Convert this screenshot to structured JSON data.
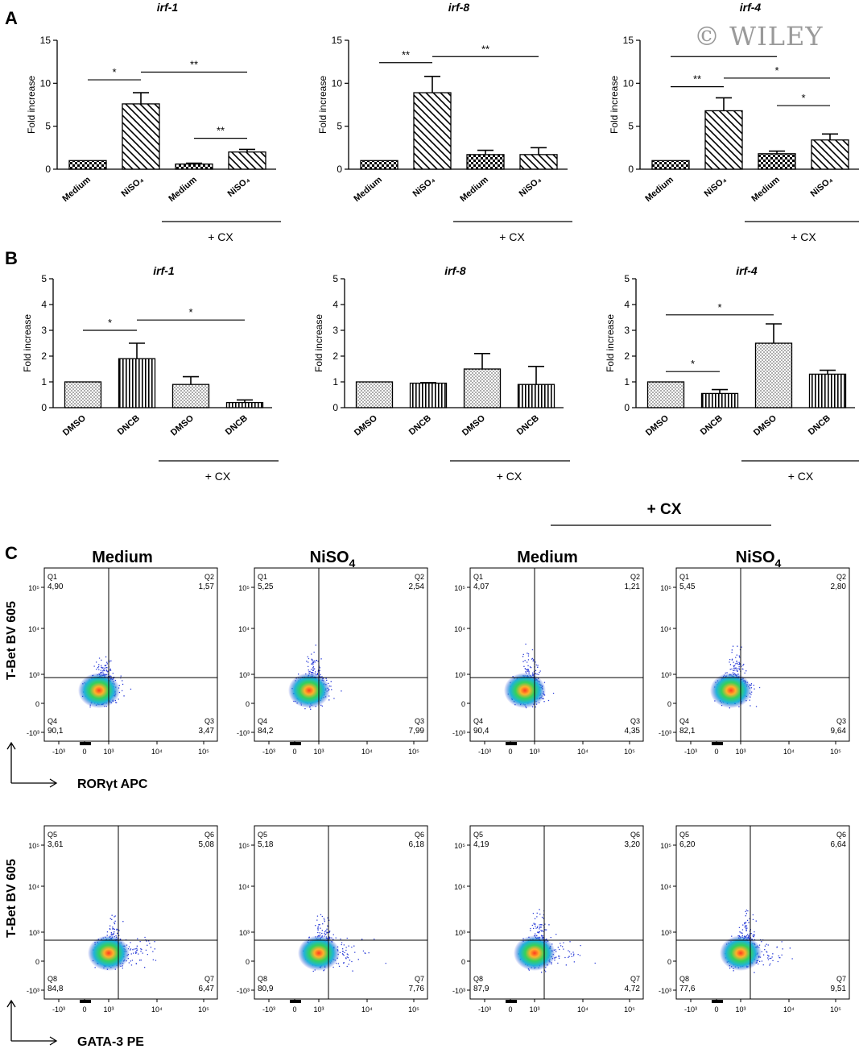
{
  "watermark": "© WILEY",
  "cx_label": "+ CX",
  "panels": {
    "A": {
      "letter": "A",
      "ylabel": "Fold increase",
      "ylim": [
        0,
        15
      ],
      "yticks": [
        0,
        5,
        10,
        15
      ],
      "charts": [
        {
          "title": "irf-1",
          "type": "bar",
          "categories": [
            "Medium",
            "NiSO₄",
            "Medium",
            "NiSO₄"
          ],
          "values": [
            1.0,
            7.6,
            0.6,
            2.0
          ],
          "errors": [
            0,
            1.3,
            0.1,
            0.3
          ],
          "patterns": [
            "checker",
            "diag",
            "checker",
            "diag"
          ],
          "signif": [
            {
              "from": 0,
              "to": 1,
              "y": 10.4,
              "label": "*"
            },
            {
              "from": 1,
              "to": 3,
              "y": 11.3,
              "label": "**"
            },
            {
              "from": 2,
              "to": 3,
              "y": 3.6,
              "label": "**"
            }
          ]
        },
        {
          "title": "irf-8",
          "type": "bar",
          "categories": [
            "Medium",
            "NiSO₄",
            "Medium",
            "NiSO₄"
          ],
          "values": [
            1.0,
            8.9,
            1.7,
            1.7
          ],
          "errors": [
            0,
            1.9,
            0.5,
            0.8
          ],
          "patterns": [
            "checker",
            "diag",
            "checker",
            "diag"
          ],
          "signif": [
            {
              "from": 0,
              "to": 1,
              "y": 12.4,
              "label": "**"
            },
            {
              "from": 1,
              "to": 3,
              "y": 13.1,
              "label": "**"
            }
          ]
        },
        {
          "title": "irf-4",
          "type": "bar",
          "categories": [
            "Medium",
            "NiSO₄",
            "Medium",
            "NiSO₄"
          ],
          "values": [
            1.0,
            6.8,
            1.8,
            3.4
          ],
          "errors": [
            0,
            1.5,
            0.3,
            0.7
          ],
          "patterns": [
            "checker",
            "diag",
            "checker",
            "diag"
          ],
          "signif": [
            {
              "from": 0,
              "to": 2,
              "y": 13.1,
              "label": ""
            },
            {
              "from": 0,
              "to": 1,
              "y": 9.6,
              "label": "**"
            },
            {
              "from": 1,
              "to": 3,
              "y": 10.6,
              "label": "*"
            },
            {
              "from": 2,
              "to": 3,
              "y": 7.4,
              "label": "*"
            }
          ]
        }
      ]
    },
    "B": {
      "letter": "B",
      "ylabel": "Fold increase",
      "ylim": [
        0,
        5
      ],
      "yticks": [
        0,
        1,
        2,
        3,
        4,
        5
      ],
      "charts": [
        {
          "title": "irf-1",
          "type": "bar",
          "categories": [
            "DMSO",
            "DNCB",
            "DMSO",
            "DNCB"
          ],
          "values": [
            1.0,
            1.9,
            0.9,
            0.2
          ],
          "errors": [
            0,
            0.6,
            0.3,
            0.1
          ],
          "patterns": [
            "dots",
            "vlines",
            "dots",
            "vlines"
          ],
          "signif": [
            {
              "from": 0,
              "to": 1,
              "y": 3.0,
              "label": "*"
            },
            {
              "from": 1,
              "to": 3,
              "y": 3.4,
              "label": "*"
            }
          ]
        },
        {
          "title": "irf-8",
          "type": "bar",
          "categories": [
            "DMSO",
            "DNCB",
            "DMSO",
            "DNCB"
          ],
          "values": [
            1.0,
            0.95,
            1.5,
            0.9
          ],
          "errors": [
            0,
            0.02,
            0.6,
            0.7
          ],
          "patterns": [
            "dots",
            "vlines",
            "dots",
            "vlines"
          ],
          "signif": []
        },
        {
          "title": "irf-4",
          "type": "bar",
          "categories": [
            "DMSO",
            "DNCB",
            "DMSO",
            "DNCB"
          ],
          "values": [
            1.0,
            0.55,
            2.5,
            1.3
          ],
          "errors": [
            0,
            0.15,
            0.75,
            0.15
          ],
          "patterns": [
            "dots",
            "vlines",
            "dots",
            "vlines"
          ],
          "signif": [
            {
              "from": 0,
              "to": 1,
              "y": 1.4,
              "label": "*"
            },
            {
              "from": 0,
              "to": 2,
              "y": 3.6,
              "label": "*"
            }
          ]
        }
      ]
    },
    "C": {
      "letter": "C",
      "columns": [
        "Medium",
        "NiSO₄",
        "Medium",
        "NiSO₄"
      ],
      "cx_group": "+ CX",
      "y_tick_labels": [
        "10⁵",
        "10⁴",
        "10³",
        "0",
        "-10³"
      ],
      "x_tick_labels": [
        "-10³",
        "0",
        "10³",
        "10⁴",
        "10⁵"
      ],
      "rows": [
        {
          "ylabel": "T-Bet BV 605",
          "xlabel": "RORγt APC",
          "plots": [
            {
              "quadrants": [
                {
                  "name": "Q1",
                  "value": "4,90"
                },
                {
                  "name": "Q2",
                  "value": "1,57"
                },
                {
                  "name": "Q3",
                  "value": "3,47"
                },
                {
                  "name": "Q4",
                  "value": "90,1"
                }
              ]
            },
            {
              "quadrants": [
                {
                  "name": "Q1",
                  "value": "5,25"
                },
                {
                  "name": "Q2",
                  "value": "2,54"
                },
                {
                  "name": "Q3",
                  "value": "7,99"
                },
                {
                  "name": "Q4",
                  "value": "84,2"
                }
              ]
            },
            {
              "quadrants": [
                {
                  "name": "Q1",
                  "value": "4,07"
                },
                {
                  "name": "Q2",
                  "value": "1,21"
                },
                {
                  "name": "Q3",
                  "value": "4,35"
                },
                {
                  "name": "Q4",
                  "value": "90,4"
                }
              ]
            },
            {
              "quadrants": [
                {
                  "name": "Q1",
                  "value": "5,45"
                },
                {
                  "name": "Q2",
                  "value": "2,80"
                },
                {
                  "name": "Q3",
                  "value": "9,64"
                },
                {
                  "name": "Q4",
                  "value": "82,1"
                }
              ]
            }
          ]
        },
        {
          "ylabel": "T-Bet BV 605",
          "xlabel": "GATA-3 PE",
          "plots": [
            {
              "quadrants": [
                {
                  "name": "Q5",
                  "value": "3,61"
                },
                {
                  "name": "Q6",
                  "value": "5,08"
                },
                {
                  "name": "Q7",
                  "value": "6,47"
                },
                {
                  "name": "Q8",
                  "value": "84,8"
                }
              ]
            },
            {
              "quadrants": [
                {
                  "name": "Q5",
                  "value": "5,18"
                },
                {
                  "name": "Q6",
                  "value": "6,18"
                },
                {
                  "name": "Q7",
                  "value": "7,76"
                },
                {
                  "name": "Q8",
                  "value": "80,9"
                }
              ]
            },
            {
              "quadrants": [
                {
                  "name": "Q5",
                  "value": "4,19"
                },
                {
                  "name": "Q6",
                  "value": "3,20"
                },
                {
                  "name": "Q7",
                  "value": "4,72"
                },
                {
                  "name": "Q8",
                  "value": "87,9"
                }
              ]
            },
            {
              "quadrants": [
                {
                  "name": "Q5",
                  "value": "6,20"
                },
                {
                  "name": "Q6",
                  "value": "6,64"
                },
                {
                  "name": "Q7",
                  "value": "9,51"
                },
                {
                  "name": "Q8",
                  "value": "77,6"
                }
              ]
            }
          ]
        }
      ]
    }
  }
}
